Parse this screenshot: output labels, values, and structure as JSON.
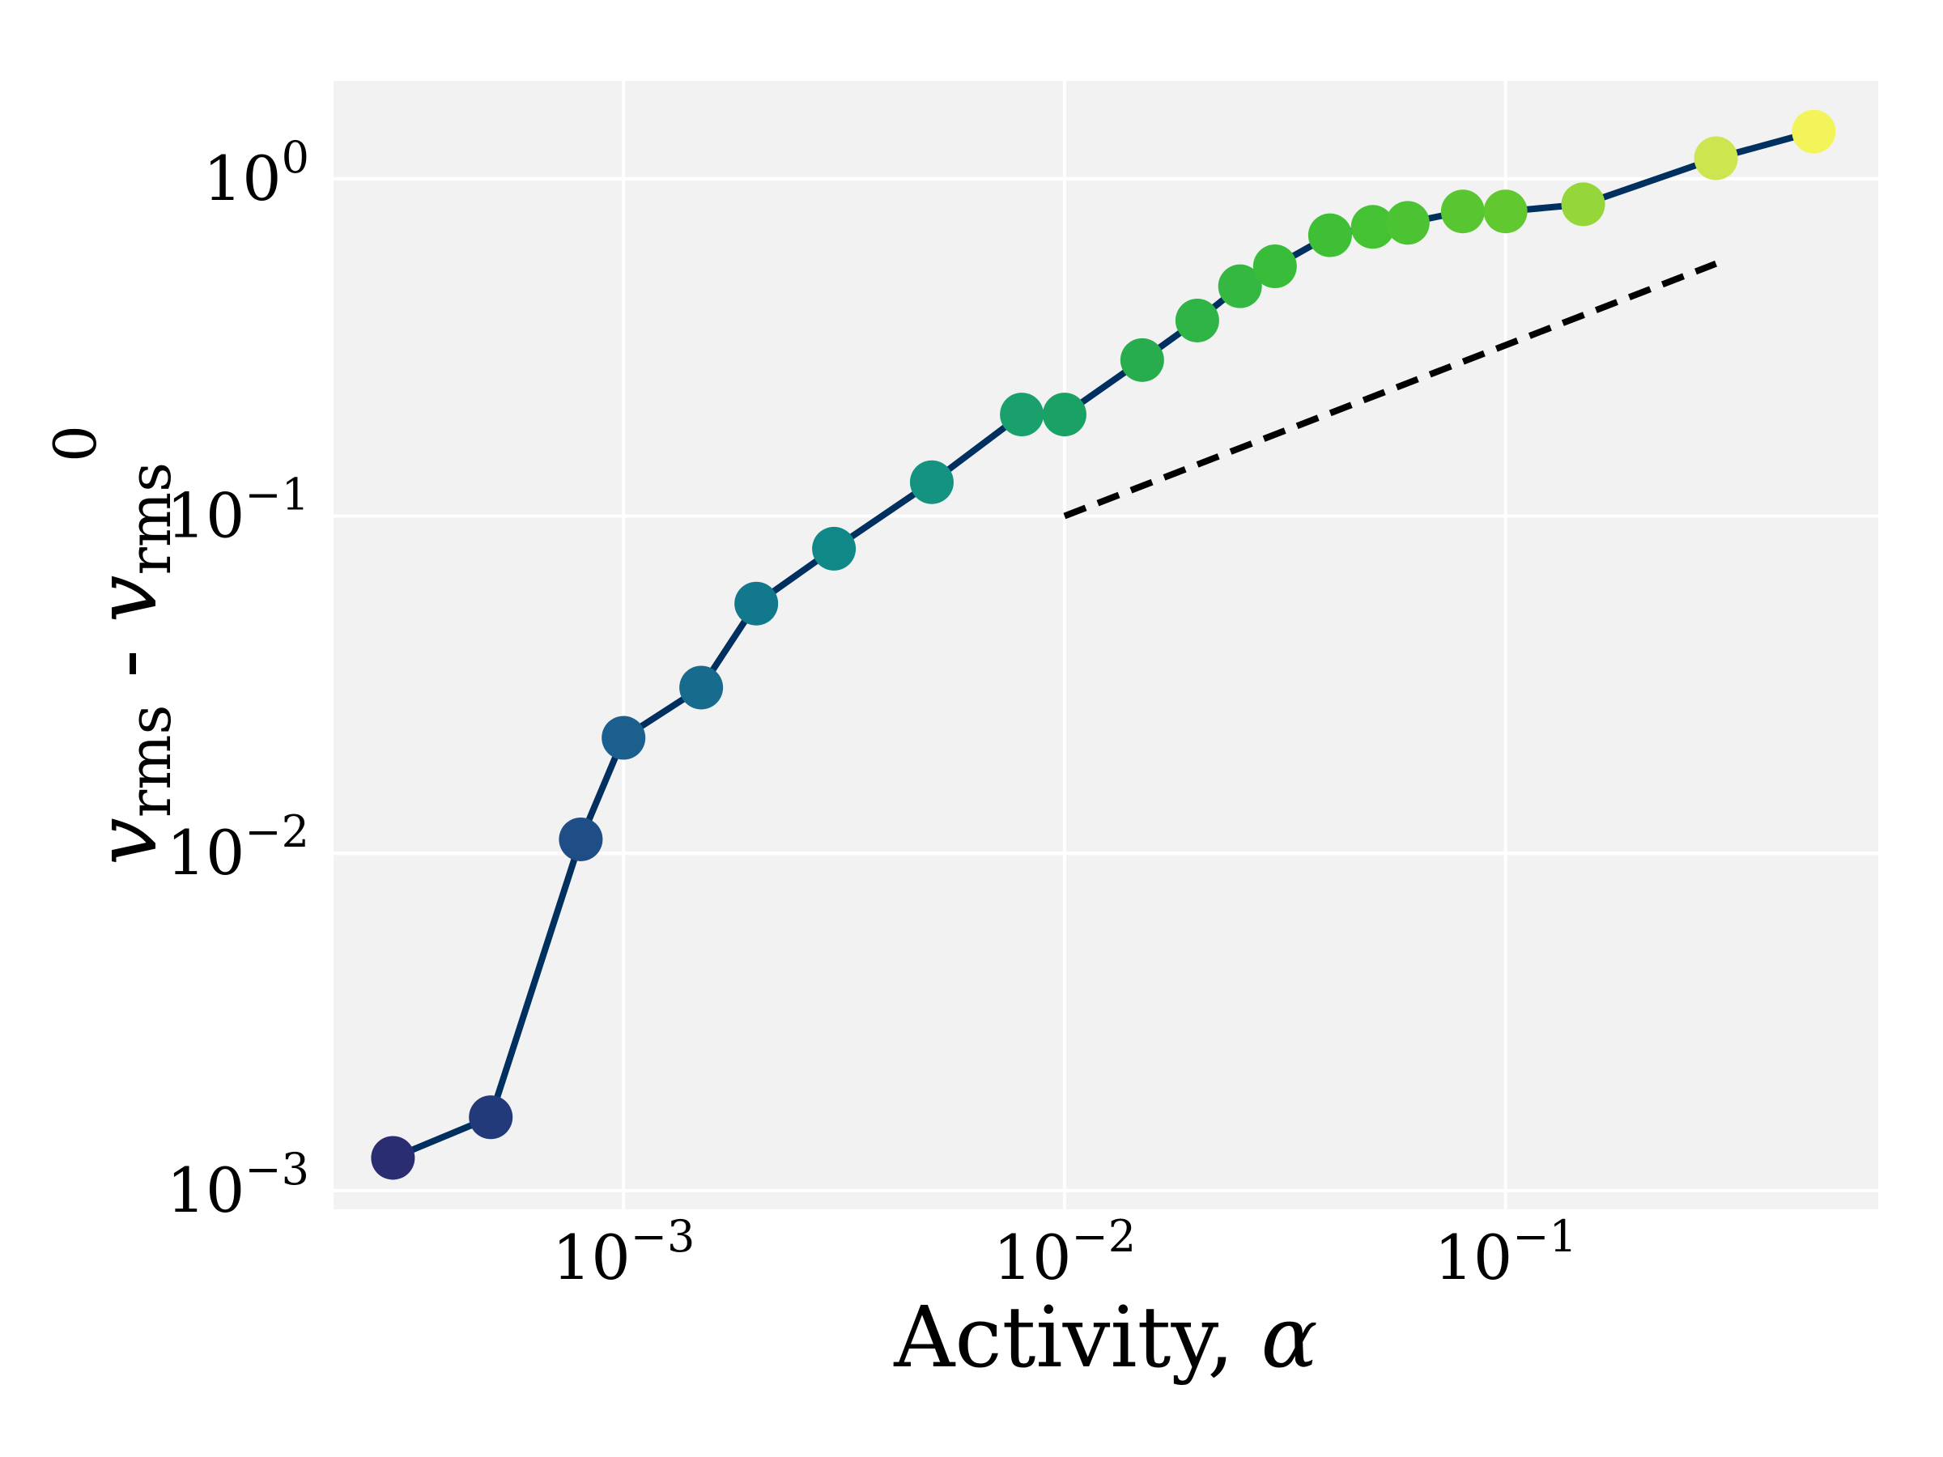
{
  "chart_data": {
    "type": "scatter",
    "title": "",
    "xlabel": {
      "text": "Activity, ",
      "symbol": "α"
    },
    "ylabel": {
      "main": "v",
      "sub": "rms",
      "sep": " - ",
      "main2": "v",
      "sub2": "rms",
      "sup2": "0"
    },
    "xscale": "log",
    "yscale": "log",
    "xlim": [
      0.00022,
      0.7
    ],
    "ylim": [
      0.00088,
      1.95
    ],
    "grid": true,
    "background_color": "#f2f2f2",
    "line_color": "#003060",
    "x_ticks": [
      {
        "base": "10",
        "exp": "−3",
        "value": 0.001
      },
      {
        "base": "10",
        "exp": "−2",
        "value": 0.01
      },
      {
        "base": "10",
        "exp": "−1",
        "value": 0.1
      }
    ],
    "y_ticks": [
      {
        "base": "10",
        "exp": "−3",
        "value": 0.001
      },
      {
        "base": "10",
        "exp": "−2",
        "value": 0.01
      },
      {
        "base": "10",
        "exp": "−1",
        "value": 0.1
      },
      {
        "base": "10",
        "exp": "0",
        "value": 1
      }
    ],
    "series": [
      {
        "x": [
          0.0003,
          0.0005,
          0.0008,
          0.001,
          0.0015,
          0.002,
          0.003,
          0.005,
          0.008,
          0.01,
          0.015,
          0.02,
          0.025,
          0.03,
          0.04,
          0.05,
          0.06,
          0.08,
          0.1,
          0.15,
          0.3,
          0.5
        ],
        "y": [
          0.00125,
          0.00165,
          0.011,
          0.022,
          0.031,
          0.055,
          0.08,
          0.126,
          0.2,
          0.2,
          0.29,
          0.38,
          0.48,
          0.55,
          0.68,
          0.72,
          0.74,
          0.8,
          0.8,
          0.84,
          1.15,
          1.38
        ],
        "colors": [
          "#2b2d73",
          "#233a7a",
          "#1f4d85",
          "#1b5f8f",
          "#176b8d",
          "#12788b",
          "#118888",
          "#139380",
          "#1aa06c",
          "#1aa164",
          "#28ad4e",
          "#2fb446",
          "#35b841",
          "#3abc3b",
          "#3fbf36",
          "#45c233",
          "#4bc332",
          "#57c630",
          "#62c82f",
          "#95d73b",
          "#cde54f",
          "#f3f45a"
        ]
      }
    ],
    "reference_line": {
      "style": "dashed",
      "color": "#000000",
      "x": [
        0.01,
        0.3
      ],
      "y": [
        0.1,
        0.56
      ]
    }
  }
}
